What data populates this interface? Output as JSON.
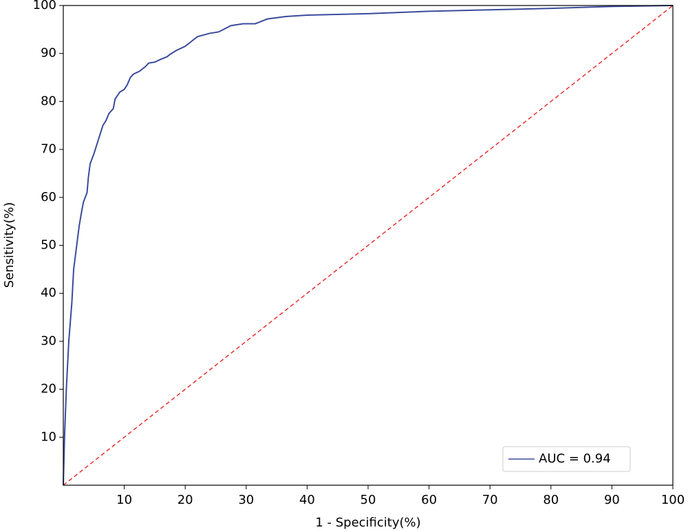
{
  "chart_data": {
    "type": "line",
    "xlabel": "1 - Specificity(%)",
    "ylabel": "Sensitivity(%)",
    "xlim": [
      0,
      100
    ],
    "ylim": [
      0,
      100
    ],
    "xticks": [
      10,
      20,
      30,
      40,
      50,
      60,
      70,
      80,
      90,
      100
    ],
    "yticks": [
      10,
      20,
      30,
      40,
      50,
      60,
      70,
      80,
      90,
      100
    ],
    "grid": false,
    "legend": "lower right",
    "series": [
      {
        "name": "AUC = 0.94",
        "color": "#3a4a9c",
        "dashed": false,
        "x": [
          0,
          0.2,
          0.5,
          0.9,
          1.4,
          1.7,
          2.2,
          2.6,
          3,
          3.3,
          3.9,
          4.1,
          4.4,
          5,
          5.5,
          6,
          6.5,
          7,
          7.5,
          8.2,
          8.5,
          9.3,
          10,
          10.5,
          11,
          11.5,
          12.5,
          13.5,
          14,
          15,
          16,
          17,
          17.5,
          18.5,
          20,
          21,
          22,
          24,
          25.5,
          27.5,
          29.5,
          31.5,
          33.5,
          36.5,
          40,
          50,
          60,
          70,
          80,
          90,
          100
        ],
        "values": [
          0,
          10,
          20,
          30,
          38,
          45,
          50,
          54,
          57,
          59,
          61,
          64,
          67,
          69,
          71,
          73,
          75,
          76,
          77.5,
          78.5,
          80.5,
          82,
          82.5,
          83.5,
          85,
          85.7,
          86.3,
          87.3,
          88,
          88.2,
          88.8,
          89.3,
          89.8,
          90.6,
          91.5,
          92.5,
          93.5,
          94.2,
          94.5,
          95.8,
          96.2,
          96.2,
          97.2,
          97.7,
          98,
          98.3,
          98.8,
          99.1,
          99.4,
          99.8,
          100
        ]
      },
      {
        "color": "#e8312f",
        "dashed": true,
        "x": [
          0,
          100
        ],
        "values": [
          0,
          100
        ]
      }
    ]
  }
}
